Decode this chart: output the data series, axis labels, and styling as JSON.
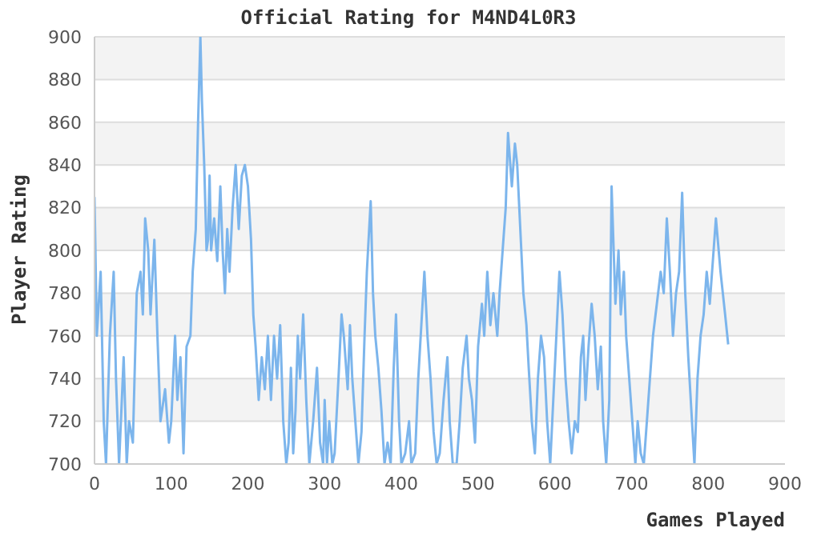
{
  "chart_data": {
    "type": "line",
    "title": "Official Rating for M4ND4L0R3",
    "xlabel": "Games Played",
    "ylabel": "Player Rating",
    "x": [
      0,
      3,
      8,
      12,
      15,
      20,
      25,
      28,
      32,
      38,
      42,
      45,
      50,
      55,
      60,
      63,
      66,
      70,
      73,
      78,
      82,
      86,
      92,
      97,
      100,
      105,
      108,
      112,
      116,
      120,
      125,
      128,
      132,
      135,
      138,
      140,
      143,
      146,
      148,
      150,
      152,
      156,
      160,
      164,
      167,
      170,
      173,
      176,
      180,
      184,
      188,
      192,
      196,
      200,
      204,
      207,
      210,
      214,
      218,
      222,
      226,
      230,
      234,
      238,
      242,
      246,
      250,
      253,
      256,
      259,
      262,
      265,
      268,
      272,
      276,
      280,
      285,
      290,
      294,
      298,
      300,
      303,
      306,
      310,
      313,
      318,
      322,
      325,
      330,
      333,
      336,
      340,
      344,
      348,
      352,
      355,
      358,
      360,
      363,
      366,
      370,
      374,
      378,
      382,
      386,
      390,
      393,
      397,
      400,
      405,
      410,
      413,
      418,
      422,
      426,
      430,
      434,
      438,
      442,
      446,
      450,
      455,
      460,
      463,
      467,
      472,
      476,
      480,
      485,
      488,
      492,
      496,
      500,
      505,
      508,
      512,
      516,
      520,
      525,
      528,
      532,
      536,
      539,
      544,
      548,
      551,
      555,
      559,
      563,
      566,
      570,
      574,
      578,
      582,
      586,
      590,
      594,
      598,
      602,
      606,
      610,
      614,
      618,
      622,
      626,
      630,
      634,
      637,
      640,
      644,
      648,
      652,
      656,
      660,
      663,
      667,
      671,
      674,
      679,
      683,
      686,
      690,
      693,
      697,
      701,
      705,
      708,
      712,
      716,
      720,
      724,
      728,
      733,
      738,
      742,
      746,
      750,
      754,
      758,
      762,
      766,
      770,
      774,
      778,
      782,
      786,
      790,
      794,
      798,
      802,
      810,
      816,
      822,
      826
    ],
    "series": [
      {
        "color": "#7cb5ec",
        "values": [
          825,
          760,
          790,
          720,
          700,
          760,
          790,
          740,
          700,
          750,
          700,
          720,
          710,
          780,
          790,
          770,
          815,
          800,
          770,
          805,
          760,
          720,
          735,
          710,
          720,
          760,
          730,
          750,
          705,
          755,
          760,
          790,
          810,
          860,
          900,
          870,
          840,
          800,
          805,
          835,
          800,
          815,
          795,
          830,
          800,
          780,
          810,
          790,
          820,
          840,
          810,
          835,
          840,
          830,
          805,
          770,
          755,
          730,
          750,
          735,
          760,
          730,
          760,
          740,
          765,
          720,
          700,
          710,
          745,
          705,
          725,
          760,
          740,
          770,
          730,
          700,
          720,
          745,
          710,
          700,
          730,
          700,
          720,
          700,
          705,
          740,
          770,
          760,
          735,
          765,
          740,
          720,
          700,
          715,
          760,
          790,
          810,
          823,
          780,
          760,
          745,
          725,
          700,
          710,
          700,
          745,
          770,
          720,
          700,
          705,
          720,
          700,
          705,
          740,
          765,
          790,
          760,
          740,
          715,
          700,
          705,
          730,
          750,
          720,
          700,
          700,
          720,
          745,
          760,
          740,
          730,
          710,
          755,
          775,
          760,
          790,
          765,
          780,
          760,
          780,
          800,
          820,
          855,
          830,
          850,
          840,
          810,
          780,
          765,
          745,
          720,
          705,
          740,
          760,
          750,
          720,
          700,
          730,
          760,
          790,
          770,
          740,
          720,
          705,
          720,
          715,
          750,
          760,
          730,
          755,
          775,
          760,
          735,
          755,
          720,
          700,
          730,
          830,
          775,
          800,
          770,
          790,
          760,
          740,
          720,
          700,
          720,
          705,
          700,
          720,
          740,
          760,
          775,
          790,
          780,
          815,
          790,
          760,
          780,
          790,
          827,
          780,
          750,
          725,
          700,
          740,
          760,
          770,
          790,
          775,
          815,
          790,
          770,
          756
        ]
      }
    ],
    "xlim": [
      0,
      900
    ],
    "xticks": [
      0,
      100,
      200,
      300,
      400,
      500,
      600,
      700,
      800,
      900
    ],
    "ylim": [
      700,
      900
    ],
    "yticks": [
      700,
      720,
      740,
      760,
      780,
      800,
      820,
      840,
      860,
      880,
      900
    ],
    "grid": "y",
    "marker": "none",
    "line_style": "solid"
  }
}
